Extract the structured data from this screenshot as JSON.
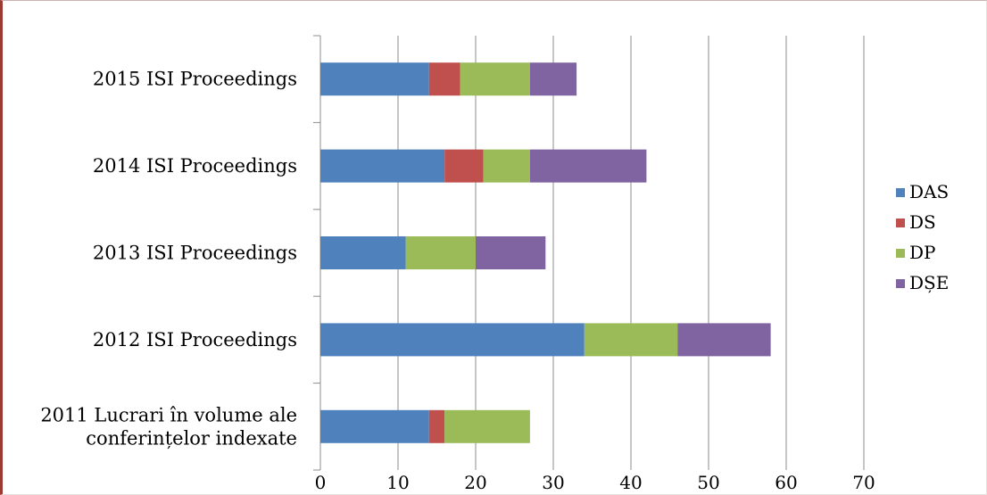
{
  "chart_data": {
    "type": "bar",
    "orientation": "horizontal",
    "stacked": true,
    "categories": [
      "2015 ISI Proceedings",
      "2014 ISI Proceedings",
      "2013 ISI Proceedings",
      "2012 ISI Proceedings",
      "2011 Lucrari în volume ale conferințelor indexate"
    ],
    "category_lines": [
      [
        "2015 ISI Proceedings"
      ],
      [
        "2014 ISI Proceedings"
      ],
      [
        "2013 ISI Proceedings"
      ],
      [
        "2012 ISI Proceedings"
      ],
      [
        "2011 Lucrari în volume ale",
        "conferințelor indexate"
      ]
    ],
    "series": [
      {
        "name": "DAS",
        "color": "#4f81bd",
        "values": [
          14,
          16,
          11,
          34,
          14
        ]
      },
      {
        "name": "DS",
        "color": "#c0504d",
        "values": [
          4,
          5,
          0,
          0,
          2
        ]
      },
      {
        "name": "DP",
        "color": "#9bbb59",
        "values": [
          9,
          6,
          9,
          12,
          11
        ]
      },
      {
        "name": "DȘE",
        "color": "#8064a2",
        "values": [
          6,
          15,
          9,
          12,
          0
        ]
      }
    ],
    "xlim": [
      0,
      70
    ],
    "x_ticks": [
      "0",
      "10",
      "20",
      "30",
      "40",
      "50",
      "60",
      "70"
    ],
    "grid": "vertical",
    "legend": "right",
    "title": "",
    "xlabel": "",
    "ylabel": ""
  }
}
